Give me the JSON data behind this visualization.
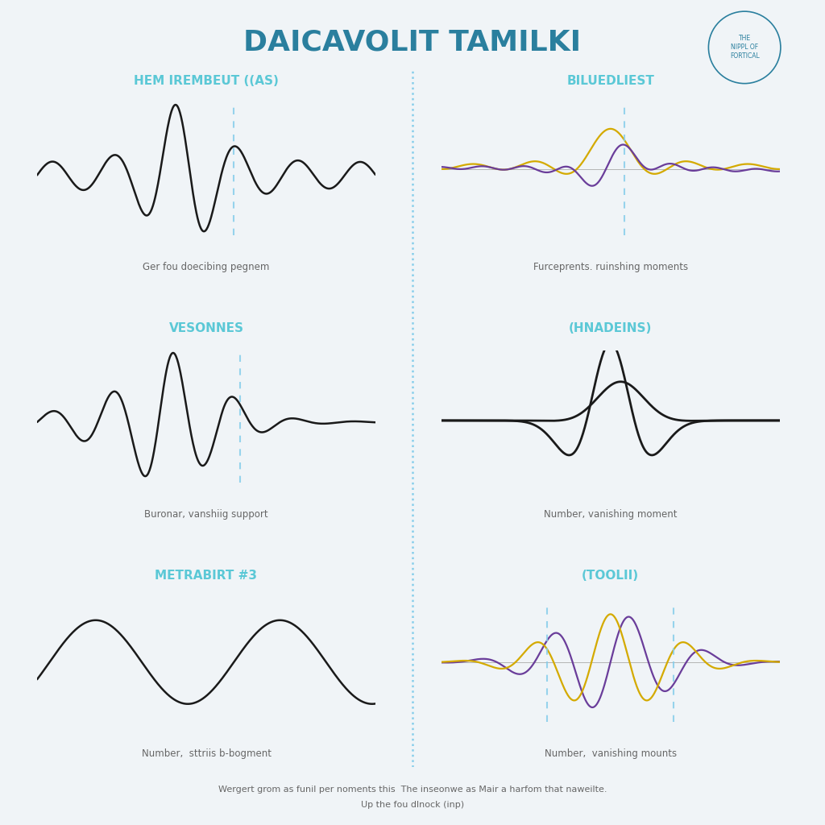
{
  "title": "DAICAVOLIT TAMILKI",
  "title_color": "#2a7f9e",
  "background_color": "#f0f4f7",
  "subtitle_line1": "Wergert grom as funil per noments this  The inse​onwe as Mair a harfom​ that naweilte.",
  "subtitle_line2": "Up the fou dlnock (inp)",
  "circle_label": "THE\nNIPPL OF\nFORTICAL",
  "divider_color": "#87CEEB",
  "panel_title_color": "#5bc8d6",
  "subtitle_color": "#666666",
  "panels": [
    {
      "title": "HEM IREMBEUT ((AS)",
      "subtitle": "Ger fou doecibing pegnem",
      "type": "haar_like",
      "colors": [
        "#1a1a1a"
      ],
      "has_dashed": true,
      "dashed_color": "#87CEEB",
      "row": 0,
      "col": 0
    },
    {
      "title": "BILUEDLIEST",
      "subtitle": "Furceprents. ruinshing moments",
      "type": "biorthogonal",
      "colors": [
        "#d4aa00",
        "#6a3d9a"
      ],
      "has_dashed": true,
      "dashed_color": "#87CEEB",
      "row": 0,
      "col": 1
    },
    {
      "title": "VESONNES",
      "subtitle": "Buronar, vanshiig support",
      "type": "coiflet_like",
      "colors": [
        "#1a1a1a"
      ],
      "has_dashed": true,
      "dashed_color": "#87CEEB",
      "row": 1,
      "col": 0
    },
    {
      "title": "(HNADEINS)",
      "subtitle": "Number, vanishing moment",
      "type": "mexican_hat",
      "colors": [
        "#1a1a1a"
      ],
      "has_dashed": false,
      "row": 1,
      "col": 1
    },
    {
      "title": "METRABIRT #3",
      "subtitle": "Number,  sttriis b-bogment",
      "type": "sine_like",
      "colors": [
        "#1a1a1a"
      ],
      "has_dashed": false,
      "row": 2,
      "col": 0
    },
    {
      "title": "(TOOLII)",
      "subtitle": "Number,  vanishing mounts",
      "type": "complex_morlet",
      "colors": [
        "#d4aa00",
        "#6a3d9a"
      ],
      "has_dashed": true,
      "dashed_color": "#87CEEB",
      "row": 2,
      "col": 1
    }
  ]
}
